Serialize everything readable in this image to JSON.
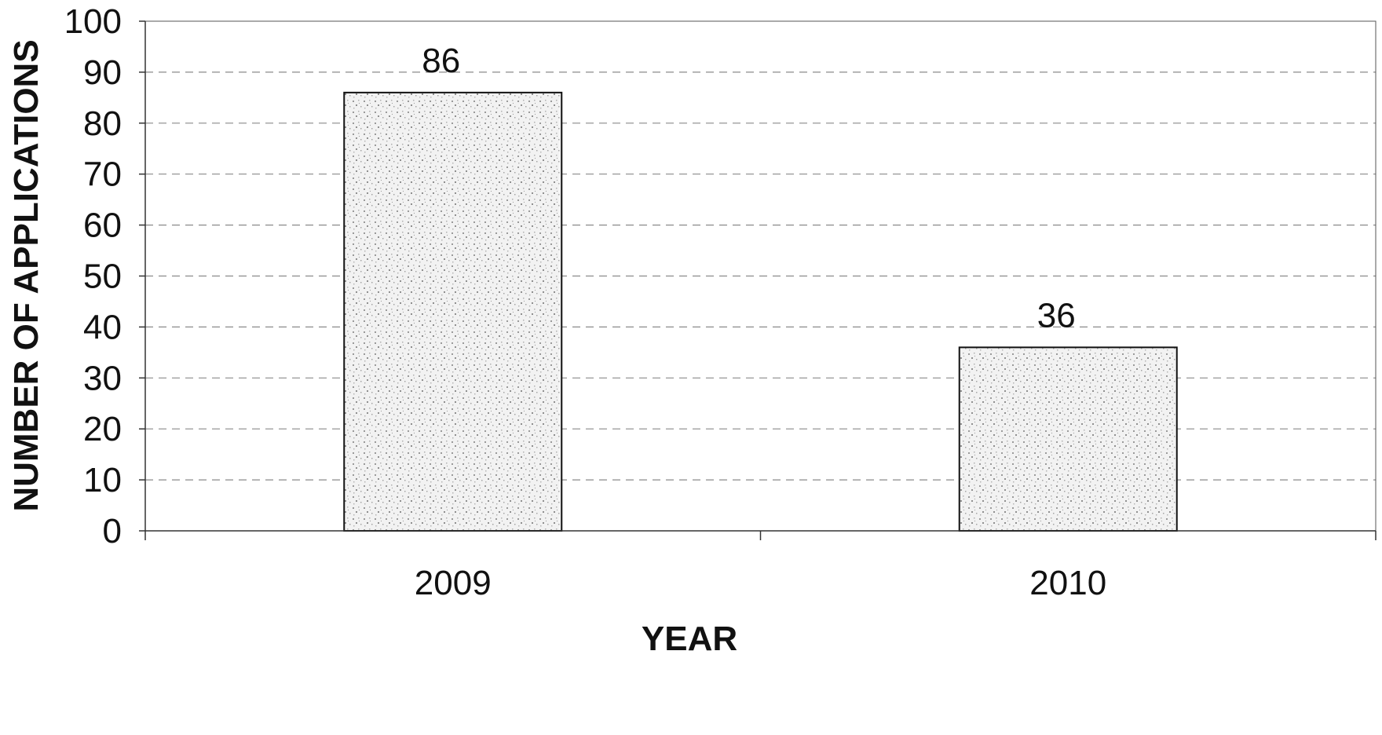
{
  "chart_data": {
    "type": "bar",
    "title": "",
    "xlabel": "YEAR",
    "ylabel": "NUMBER OF APPLICATIONS",
    "categories": [
      "2009",
      "2010"
    ],
    "values": [
      86,
      36
    ],
    "data_labels": [
      "86",
      "36"
    ],
    "ylim": [
      0,
      100
    ],
    "yticks": [
      "0",
      "10",
      "20",
      "30",
      "40",
      "50",
      "60",
      "70",
      "80",
      "90",
      "100"
    ],
    "grid": true,
    "legend": "none",
    "colors": {
      "bar_fill": "#e6e6e6",
      "bar_stroke": "#111111",
      "grid": "#8a8a8a",
      "axis": "#333333"
    }
  }
}
